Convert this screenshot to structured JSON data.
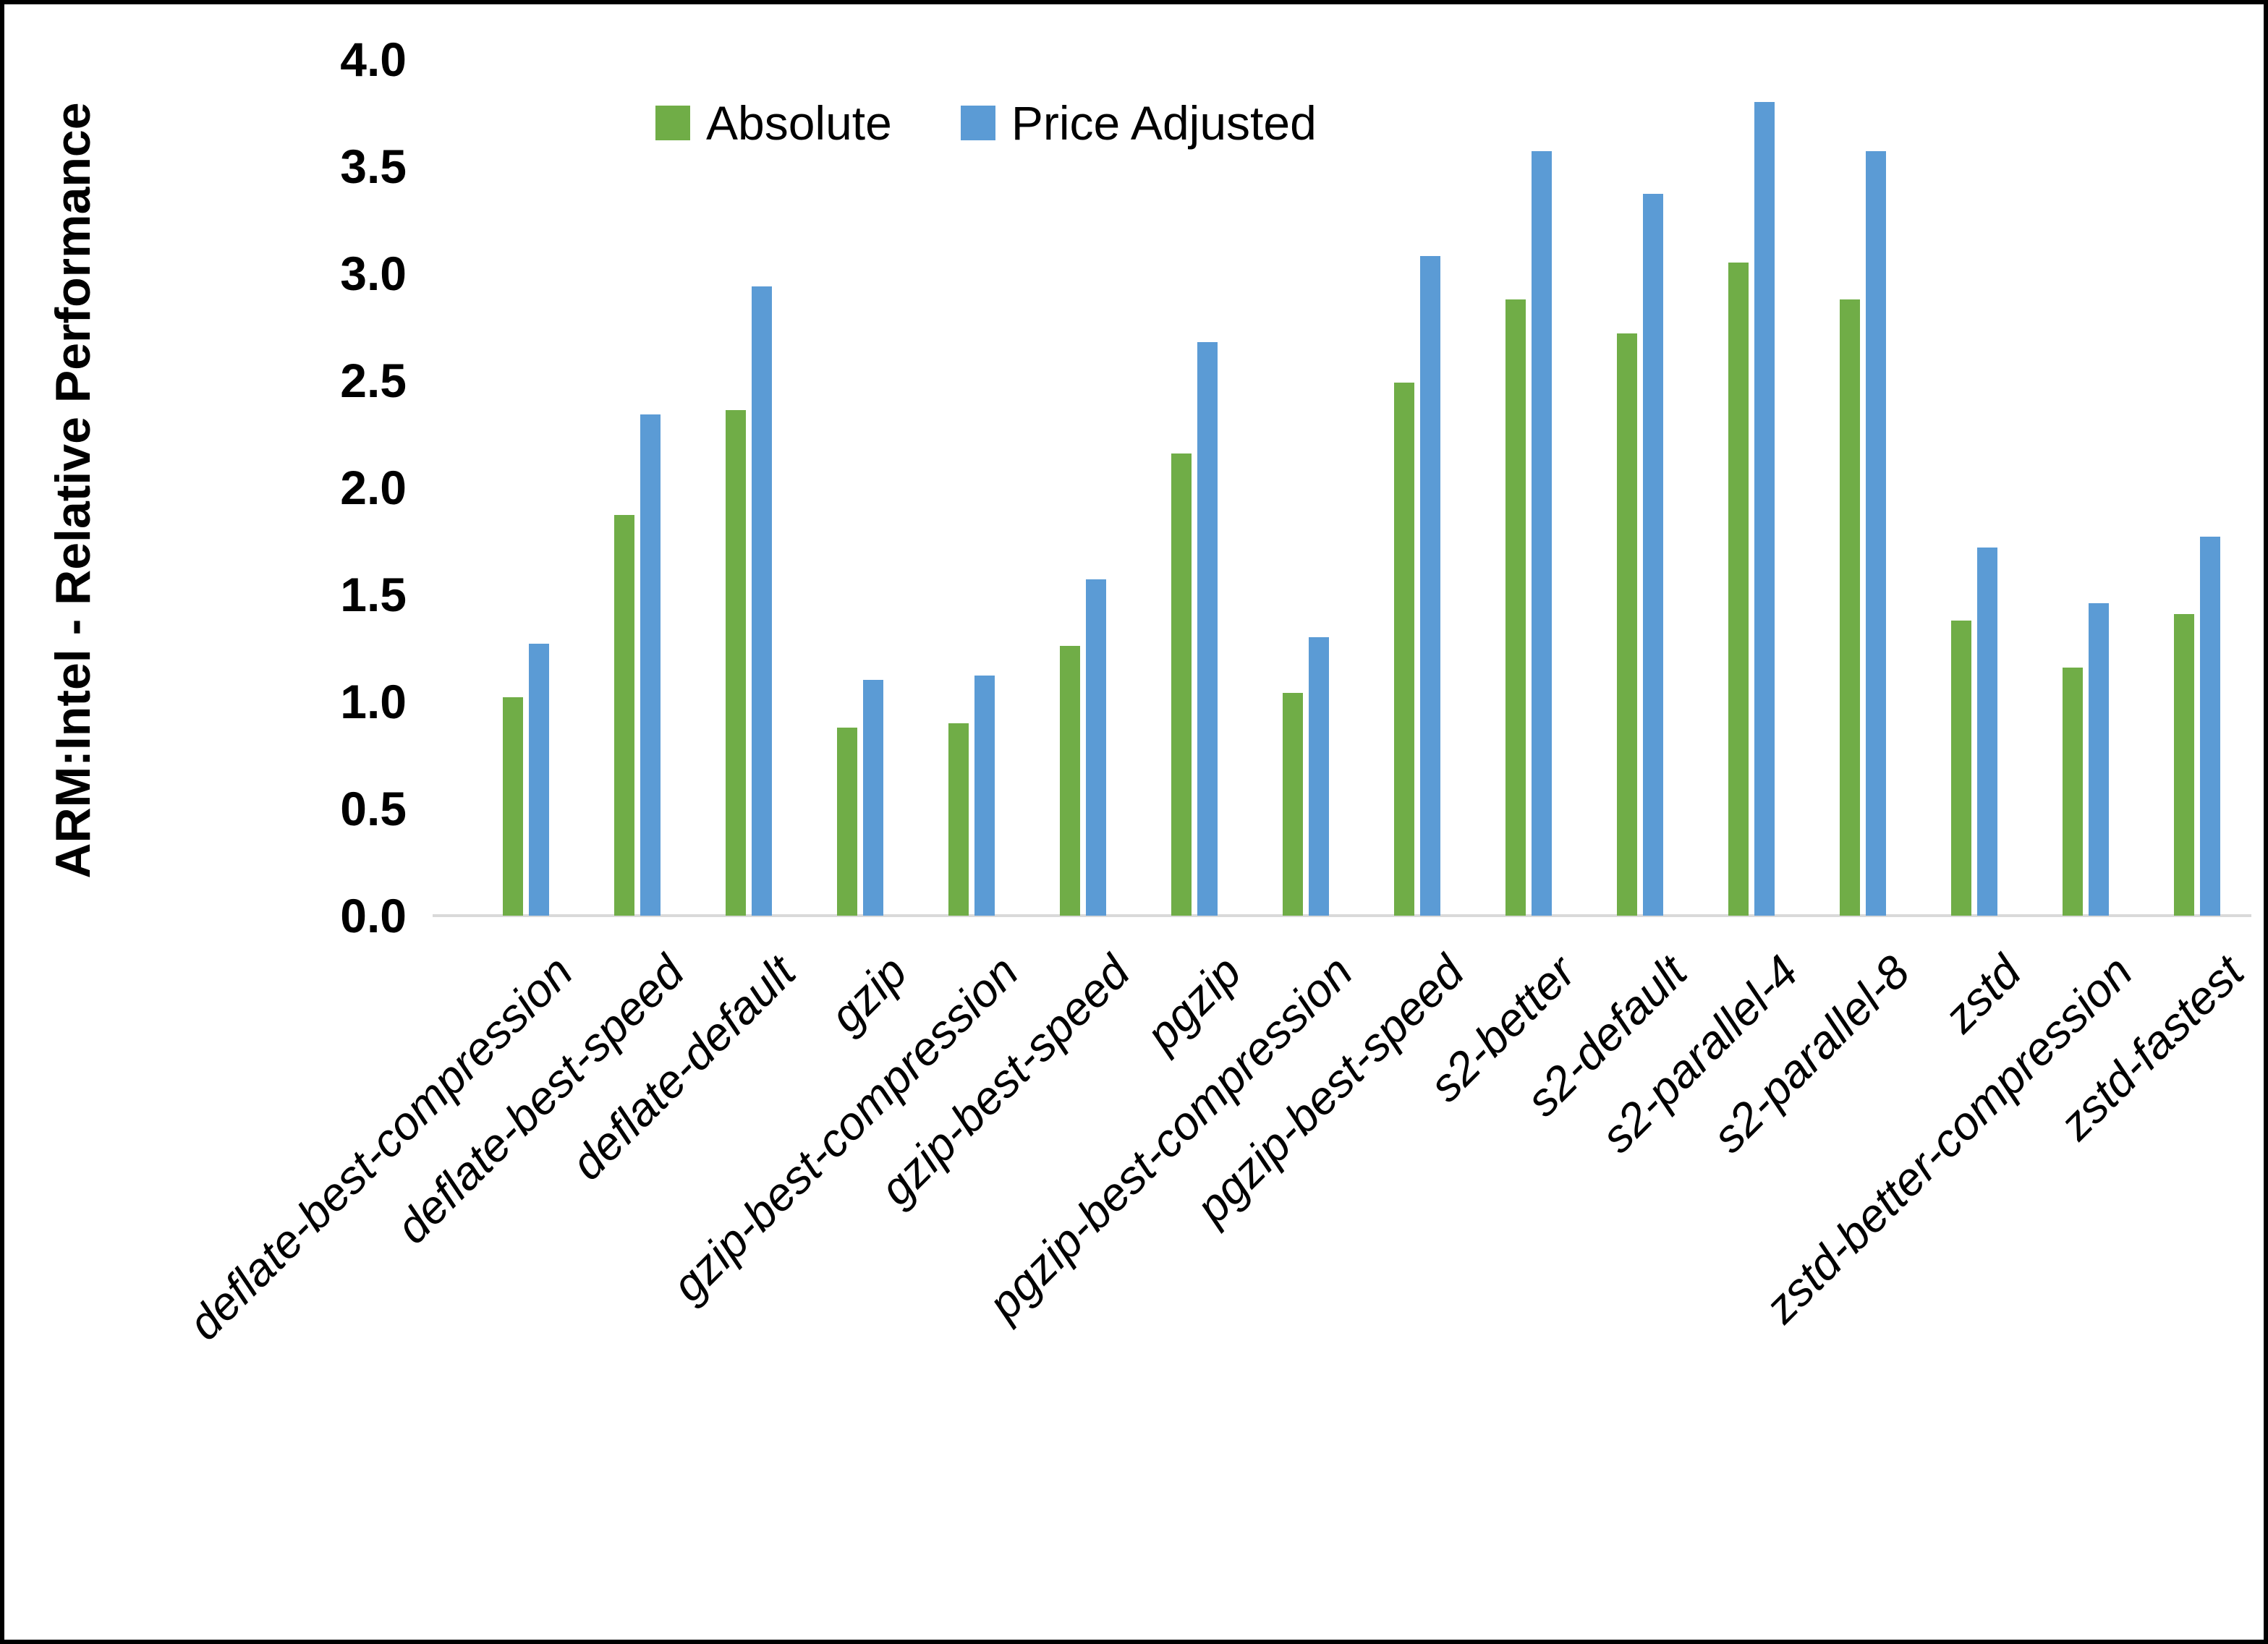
{
  "chart_data": {
    "type": "bar",
    "title": "",
    "ylabel": "ARM:Intel - Relative Performance",
    "xlabel": "",
    "ylim": [
      0,
      4
    ],
    "ytick_interval": 0.5,
    "yticks": [
      "0.0",
      "0.5",
      "1.0",
      "1.5",
      "2.0",
      "2.5",
      "3.0",
      "3.5",
      "4.0"
    ],
    "grid": false,
    "legend_position": "top-center",
    "axis_line_color": "#D9D9D9",
    "frame_color": "#000000",
    "categories": [
      "deflate-best-compression",
      "deflate-best-speed",
      "deflate-default",
      "gzip",
      "gzip-best-compression",
      "gzip-best-speed",
      "pgzip",
      "pgzip-best-compression",
      "pgzip-best-speed",
      "s2-better",
      "s2-default",
      "s2-parallel-4",
      "s2-parallel-8",
      "zstd",
      "zstd-better-compression",
      "zstd-fastest"
    ],
    "series": [
      {
        "name": "Absolute",
        "color": "#70AD47",
        "values": [
          1.02,
          1.87,
          2.36,
          0.88,
          0.9,
          1.26,
          2.16,
          1.04,
          2.49,
          2.88,
          2.72,
          3.05,
          2.88,
          1.38,
          1.16,
          1.41
        ]
      },
      {
        "name": "Price Adjusted",
        "color": "#5B9BD5",
        "values": [
          1.27,
          2.34,
          2.94,
          1.1,
          1.12,
          1.57,
          2.68,
          1.3,
          3.08,
          3.57,
          3.37,
          3.8,
          3.57,
          1.72,
          1.46,
          1.77
        ]
      }
    ]
  }
}
